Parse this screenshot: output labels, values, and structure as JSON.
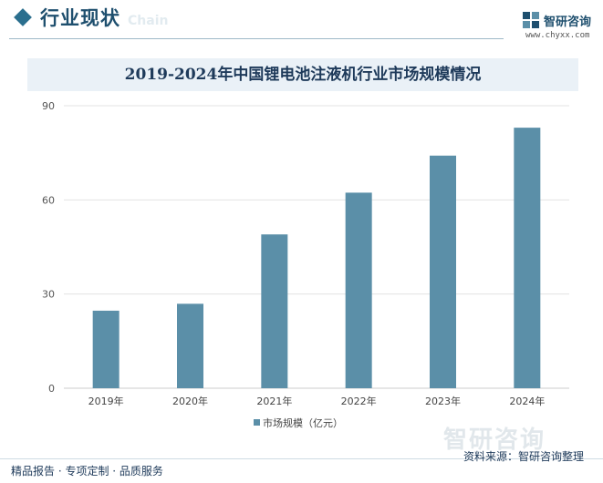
{
  "header": {
    "title": "行业现状",
    "ghost_text": "Chain",
    "brand_name": "智研咨询",
    "brand_url": "www.chyxx.com"
  },
  "chart_data": {
    "type": "bar",
    "title": "2019-2024年中国锂电池注液机行业市场规模情况",
    "categories": [
      "2019年",
      "2020年",
      "2021年",
      "2022年",
      "2023年",
      "2024年"
    ],
    "series": [
      {
        "name": "市场规模（亿元）",
        "values": [
          24.7,
          26.9,
          49.0,
          62.3,
          74.1,
          83.0
        ]
      }
    ],
    "ylim": [
      0,
      90
    ],
    "yticks": [
      0,
      30,
      60,
      90
    ],
    "legend": "bottom",
    "grid": true,
    "colors": {
      "bar": "#5b8fa8",
      "grid": "#e3e3e3",
      "axis": "#cccccc"
    }
  },
  "footer": {
    "left_text": "精品报告 · 专项定制 · 品质服务",
    "source_text": "资料来源：智研咨询整理",
    "watermark": "智研咨询"
  }
}
